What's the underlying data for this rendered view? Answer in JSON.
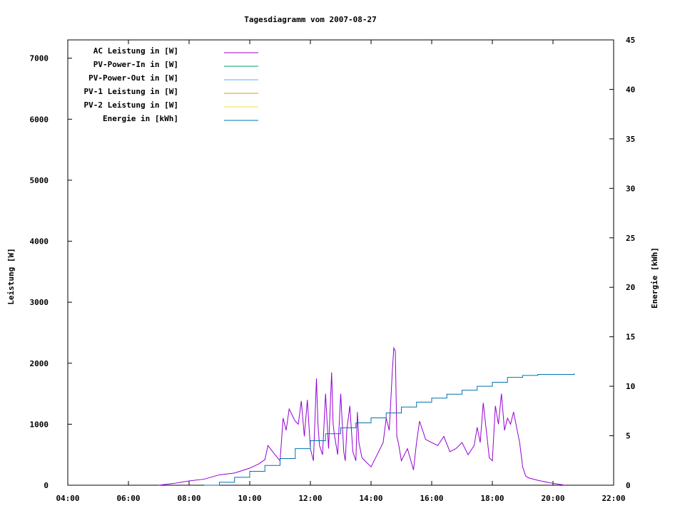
{
  "chart_data": {
    "type": "line",
    "title": "Tagesdiagramm vom 2007-08-27",
    "ylabel": "Leistung [W]",
    "y2label": "Energie [kWh]",
    "xlim": [
      4,
      22
    ],
    "ylim": [
      0,
      7300
    ],
    "y2lim": [
      0,
      45
    ],
    "x_tick_labels": [
      "04:00",
      "06:00",
      "08:00",
      "10:00",
      "12:00",
      "14:00",
      "16:00",
      "18:00",
      "20:00",
      "22:00"
    ],
    "y_tick_labels": [
      "0",
      "1000",
      "2000",
      "3000",
      "4000",
      "5000",
      "6000",
      "7000"
    ],
    "y2_tick_labels": [
      "0",
      "5",
      "10",
      "15",
      "20",
      "25",
      "30",
      "35",
      "40",
      "45"
    ],
    "legend_position": "top-left",
    "grid": false,
    "series": [
      {
        "name": "AC Leistung in [W]",
        "color": "#9400D3",
        "axis": "y",
        "x": [
          7.0,
          7.5,
          8.0,
          8.5,
          9.0,
          9.5,
          10.0,
          10.3,
          10.5,
          10.6,
          10.8,
          11.0,
          11.1,
          11.2,
          11.3,
          11.5,
          11.6,
          11.7,
          11.8,
          11.9,
          12.0,
          12.1,
          12.2,
          12.25,
          12.3,
          12.4,
          12.5,
          12.6,
          12.7,
          12.75,
          12.8,
          12.9,
          13.0,
          13.1,
          13.15,
          13.2,
          13.3,
          13.4,
          13.5,
          13.55,
          13.6,
          13.7,
          13.8,
          14.0,
          14.2,
          14.4,
          14.5,
          14.6,
          14.7,
          14.75,
          14.8,
          14.85,
          14.9,
          15.0,
          15.2,
          15.4,
          15.5,
          15.6,
          15.8,
          16.0,
          16.2,
          16.4,
          16.6,
          16.8,
          17.0,
          17.2,
          17.4,
          17.5,
          17.6,
          17.7,
          17.8,
          17.9,
          18.0,
          18.1,
          18.2,
          18.3,
          18.4,
          18.5,
          18.6,
          18.7,
          18.8,
          18.9,
          19.0,
          19.1,
          19.2,
          19.5,
          20.0,
          20.4
        ],
        "values": [
          0,
          30,
          70,
          100,
          170,
          200,
          280,
          350,
          420,
          650,
          520,
          400,
          1100,
          900,
          1250,
          1050,
          1000,
          1380,
          800,
          1400,
          600,
          400,
          1750,
          1000,
          650,
          500,
          1500,
          600,
          1850,
          1000,
          800,
          500,
          1500,
          550,
          400,
          900,
          1300,
          550,
          400,
          1200,
          700,
          450,
          400,
          300,
          500,
          700,
          1100,
          900,
          1850,
          2250,
          2200,
          800,
          700,
          400,
          600,
          250,
          700,
          1050,
          750,
          700,
          650,
          800,
          550,
          600,
          700,
          500,
          650,
          950,
          700,
          1350,
          900,
          450,
          400,
          1300,
          1000,
          1500,
          900,
          1100,
          1000,
          1200,
          950,
          700,
          300,
          150,
          120,
          80,
          30,
          0
        ]
      },
      {
        "name": "PV-Power-In in [W]",
        "color": "#009E73",
        "axis": "y",
        "x": [],
        "values": []
      },
      {
        "name": "PV-Power-Out in [W]",
        "color": "#56B4E9",
        "axis": "y",
        "x": [],
        "values": []
      },
      {
        "name": "PV-1 Leistung in [W]",
        "color": "#E69F00",
        "axis": "y",
        "x": [],
        "values": []
      },
      {
        "name": "PV-2 Leistung in [W]",
        "color": "#F0E442",
        "axis": "y",
        "x": [],
        "values": []
      },
      {
        "name": "Energie in [kWh]",
        "color": "#0072B2",
        "axis": "y2",
        "x": [
          8.5,
          9.0,
          9.5,
          10.0,
          10.5,
          11.0,
          11.5,
          12.0,
          12.5,
          13.0,
          13.5,
          14.0,
          14.5,
          15.0,
          15.5,
          16.0,
          16.5,
          17.0,
          17.5,
          18.0,
          18.5,
          19.0,
          19.5,
          20.0,
          20.7
        ],
        "values": [
          0,
          0.3,
          0.8,
          1.4,
          2.0,
          2.7,
          3.7,
          4.5,
          5.2,
          5.8,
          6.3,
          6.8,
          7.3,
          7.9,
          8.4,
          8.8,
          9.2,
          9.6,
          10.0,
          10.4,
          10.9,
          11.1,
          11.2,
          11.2,
          11.3
        ]
      }
    ]
  }
}
